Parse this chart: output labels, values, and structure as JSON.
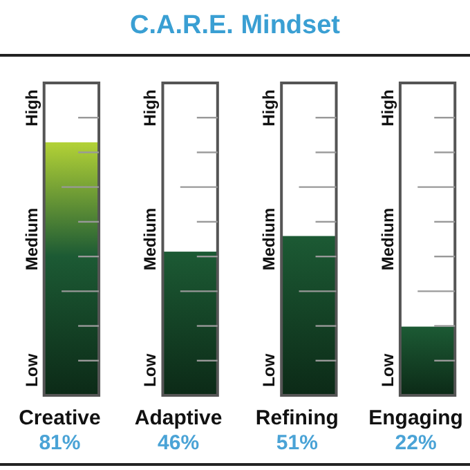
{
  "chart_data": {
    "type": "bar",
    "title": "C.A.R.E. Mindset",
    "categories": [
      "Creative",
      "Adaptive",
      "Refining",
      "Engaging"
    ],
    "values": [
      81,
      46,
      51,
      22
    ],
    "value_labels": [
      "81%",
      "46%",
      "51%",
      "22%"
    ],
    "colors": [
      "#b3d236",
      "#1c5a34",
      "#1c5a34",
      "#1c5a34"
    ],
    "ylim": [
      0,
      100
    ],
    "annotations": [
      "Low",
      "Medium",
      "High"
    ]
  }
}
